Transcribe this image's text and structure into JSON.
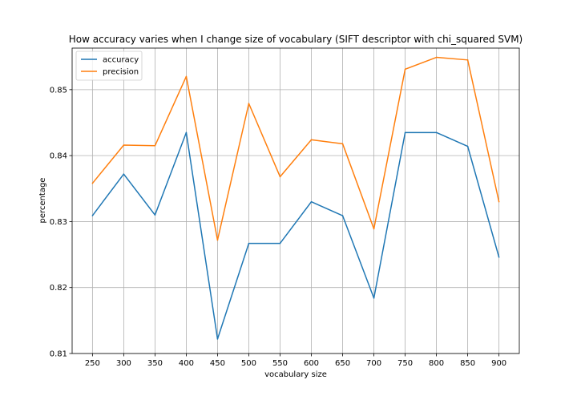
{
  "chart_data": {
    "type": "line",
    "title": "How accuracy varies when I change size of vocabulary (SIFT descriptor with chi_squared SVM)",
    "xlabel": "vocabulary size",
    "ylabel": "percentage",
    "x": [
      250,
      300,
      350,
      400,
      450,
      500,
      550,
      600,
      650,
      700,
      750,
      800,
      850,
      900
    ],
    "xticks": [
      "250",
      "300",
      "350",
      "400",
      "450",
      "500",
      "550",
      "600",
      "650",
      "700",
      "750",
      "800",
      "850",
      "900"
    ],
    "yticks": [
      "0.81",
      "0.82",
      "0.83",
      "0.84",
      "0.85"
    ],
    "ytick_values": [
      0.81,
      0.82,
      0.83,
      0.84,
      0.85
    ],
    "xlim": [
      217.5,
      932.5
    ],
    "ylim": [
      0.81,
      0.8563
    ],
    "grid": true,
    "legend_position": "top-left",
    "series": [
      {
        "name": "accuracy",
        "color": "#1f77b4",
        "values": [
          0.8309,
          0.8372,
          0.831,
          0.8435,
          0.8122,
          0.8267,
          0.8267,
          0.833,
          0.8309,
          0.8184,
          0.8435,
          0.8435,
          0.8414,
          0.8246
        ]
      },
      {
        "name": "precision",
        "color": "#ff7f0e",
        "values": [
          0.8358,
          0.8416,
          0.8415,
          0.852,
          0.8272,
          0.8479,
          0.8368,
          0.8424,
          0.8418,
          0.8289,
          0.8531,
          0.8549,
          0.8545,
          0.833
        ]
      }
    ]
  }
}
